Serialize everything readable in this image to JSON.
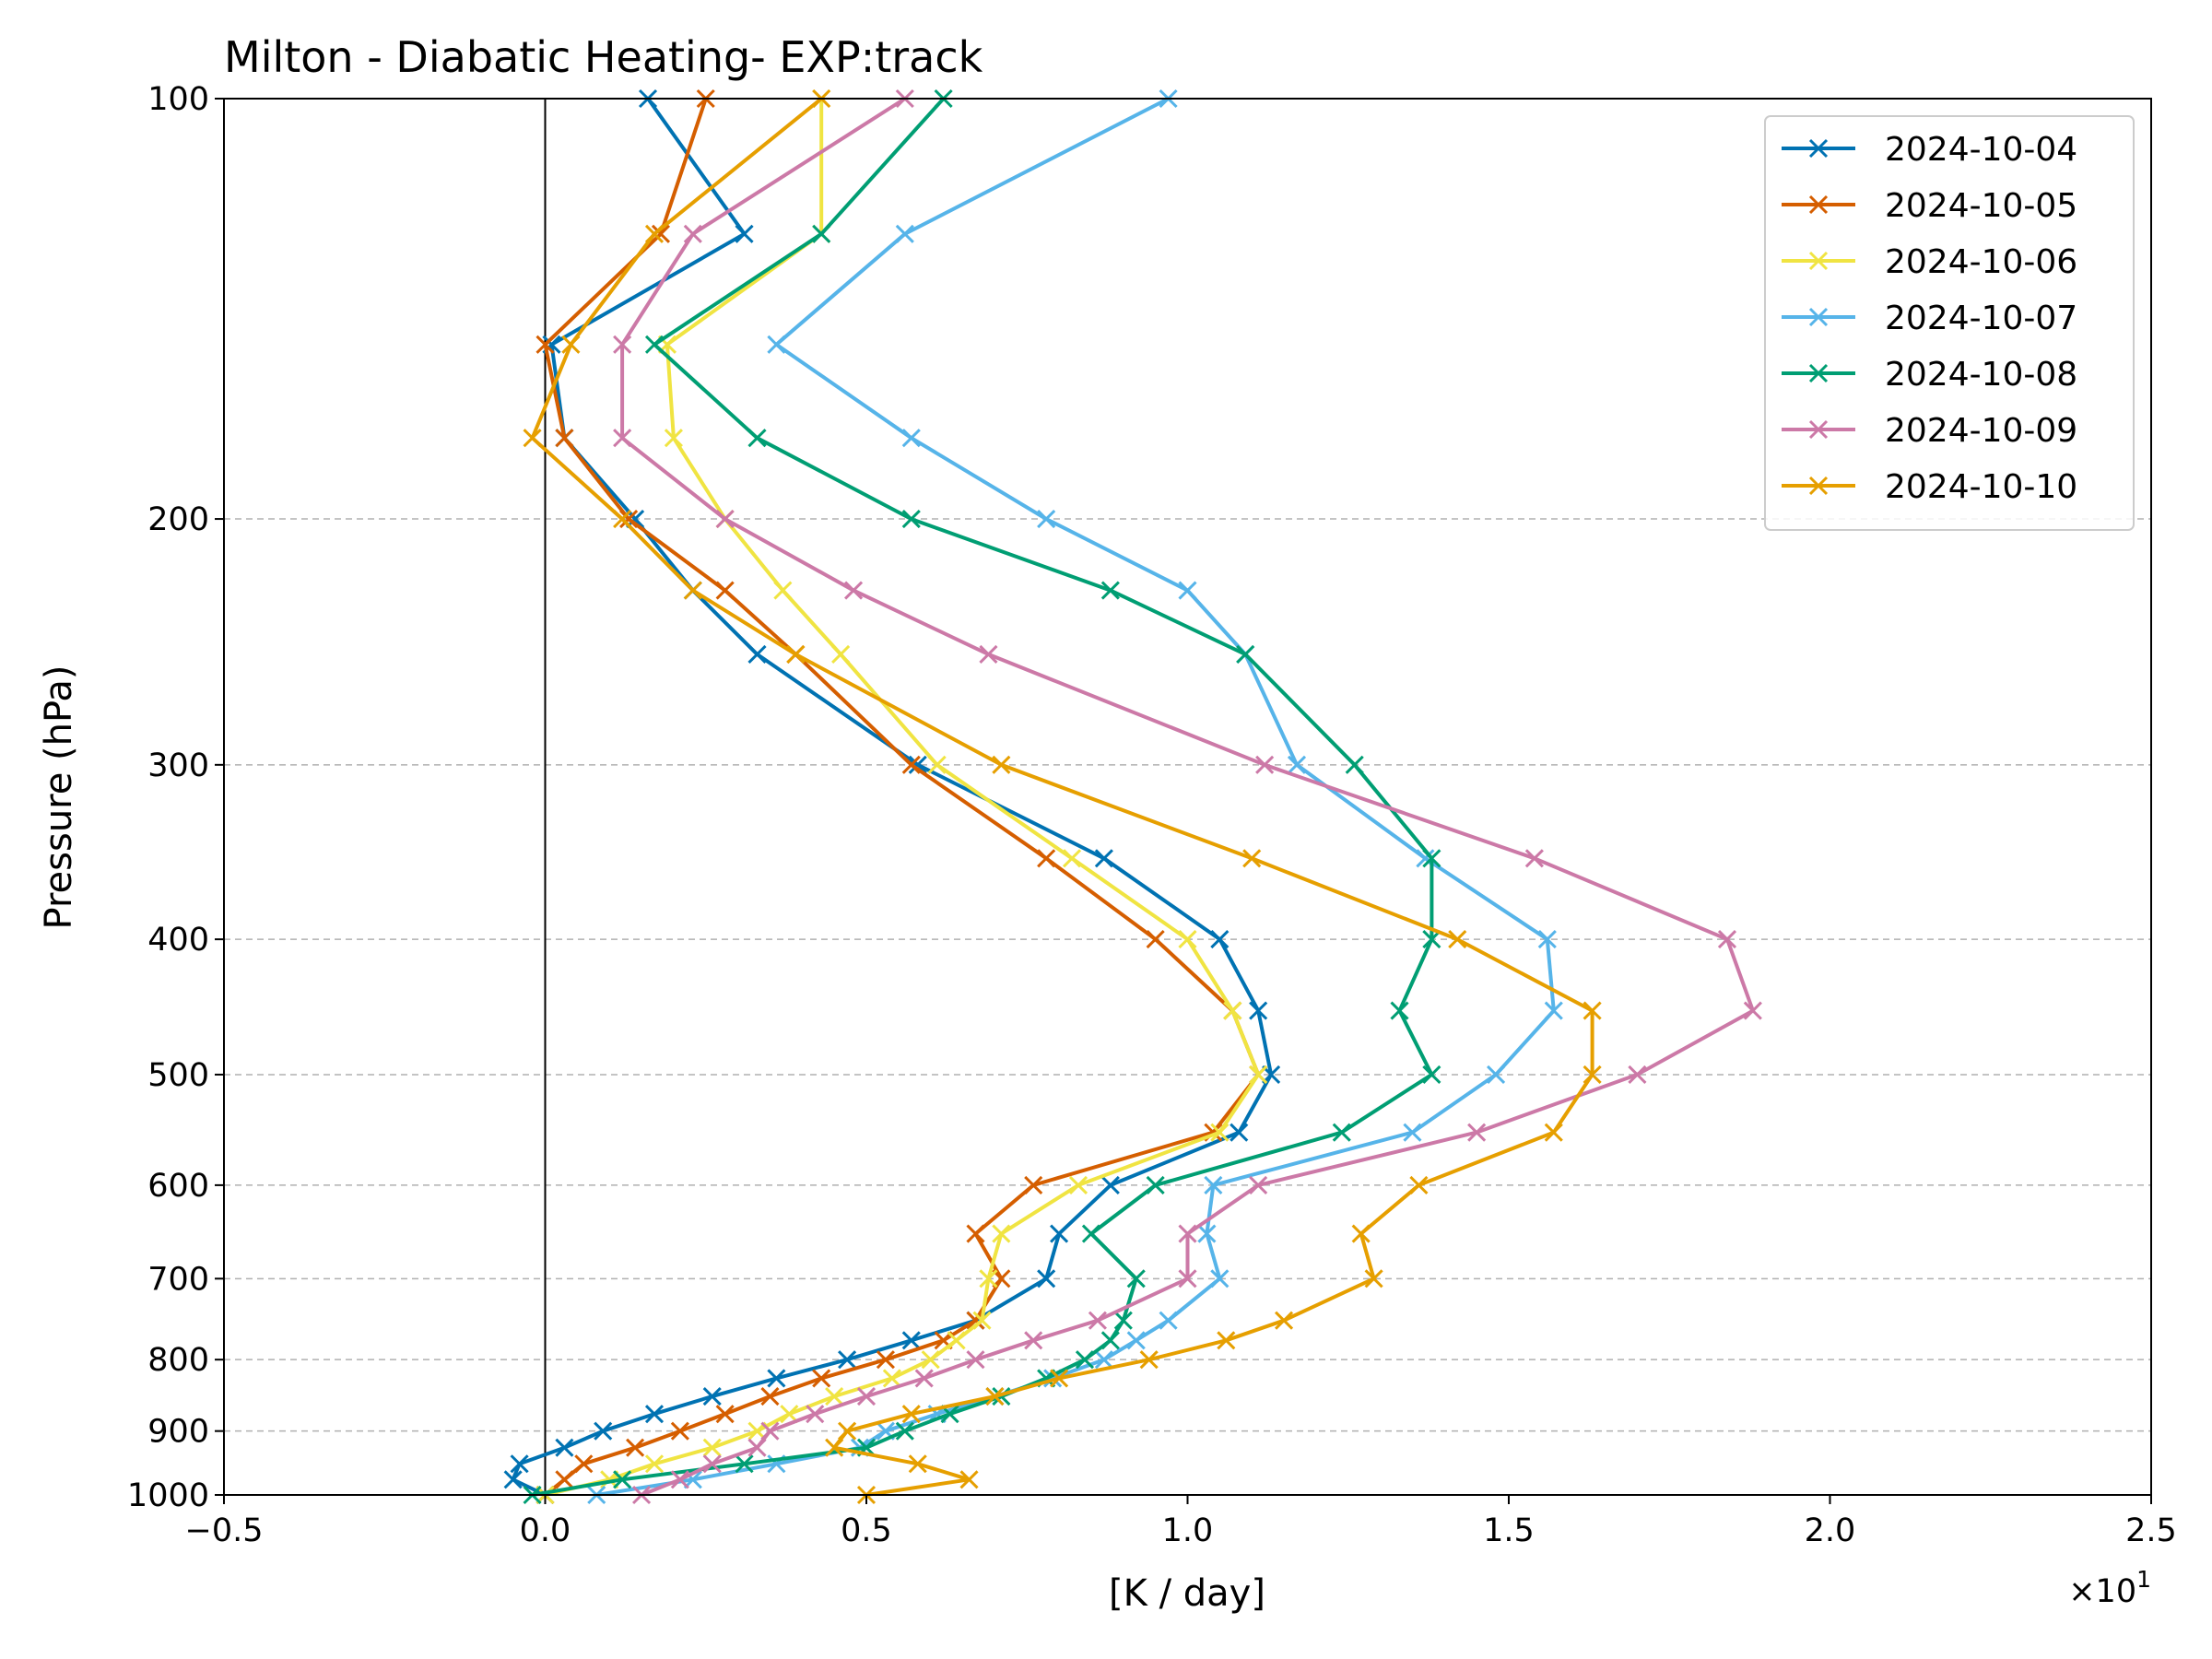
{
  "chart_data": {
    "type": "line",
    "title": "Milton - Diabatic Heating- EXP:track",
    "xlabel": "[K / day]",
    "ylabel": "Pressure (hPa)",
    "x_offset_label": "×10",
    "x_offset_exponent": "1",
    "xlim": [
      -0.5,
      2.5
    ],
    "ylim": [
      1000,
      100
    ],
    "yscale": "log",
    "xticks": [
      "−0.5",
      "0.0",
      "0.5",
      "1.0",
      "1.5",
      "2.0",
      "2.5"
    ],
    "xtick_values": [
      -0.5,
      0.0,
      0.5,
      1.0,
      1.5,
      2.0,
      2.5
    ],
    "yticks": [
      100,
      200,
      300,
      400,
      500,
      600,
      700,
      800,
      900,
      1000
    ],
    "ytick_labels": [
      "100",
      "200",
      "300",
      "400",
      "500",
      "600",
      "700",
      "800",
      "900",
      "1000"
    ],
    "grid": "horizontal dashed",
    "vertical_line_at": 0,
    "legend_position": "top-right",
    "levels": [
      100,
      125,
      150,
      175,
      200,
      225,
      250,
      300,
      350,
      400,
      450,
      500,
      550,
      600,
      650,
      700,
      750,
      775,
      800,
      825,
      850,
      875,
      900,
      925,
      950,
      975,
      1000
    ],
    "series": [
      {
        "name": "2024-10-04",
        "color": "#0072b2",
        "values": [
          0.16,
          0.31,
          0.01,
          0.03,
          0.14,
          0.23,
          0.33,
          0.58,
          0.87,
          1.05,
          1.11,
          1.13,
          1.08,
          0.88,
          0.8,
          0.78,
          0.67,
          0.57,
          0.47,
          0.36,
          0.26,
          0.17,
          0.09,
          0.03,
          -0.04,
          -0.05,
          0.0
        ]
      },
      {
        "name": "2024-10-05",
        "color": "#d55e00",
        "values": [
          0.25,
          0.18,
          0.0,
          0.03,
          0.13,
          0.28,
          0.39,
          0.57,
          0.78,
          0.95,
          1.07,
          1.11,
          1.04,
          0.76,
          0.67,
          0.71,
          0.67,
          0.62,
          0.53,
          0.43,
          0.35,
          0.28,
          0.21,
          0.14,
          0.06,
          0.03,
          0.0
        ]
      },
      {
        "name": "2024-10-06",
        "color": "#f0e442",
        "values": [
          0.43,
          0.43,
          0.19,
          0.2,
          0.28,
          0.37,
          0.46,
          0.61,
          0.82,
          1.0,
          1.07,
          1.11,
          1.05,
          0.83,
          0.71,
          0.69,
          0.68,
          0.64,
          0.6,
          0.54,
          0.45,
          0.38,
          0.33,
          0.26,
          0.17,
          0.1,
          0.0
        ]
      },
      {
        "name": "2024-10-07",
        "color": "#56b4e9",
        "values": [
          0.97,
          0.56,
          0.36,
          0.57,
          0.78,
          1.0,
          1.09,
          1.17,
          1.37,
          1.56,
          1.57,
          1.48,
          1.35,
          1.04,
          1.03,
          1.05,
          0.97,
          0.92,
          0.87,
          0.79,
          0.7,
          0.61,
          0.53,
          0.49,
          0.36,
          0.23,
          0.08
        ]
      },
      {
        "name": "2024-10-08",
        "color": "#009e73",
        "values": [
          0.62,
          0.43,
          0.17,
          0.33,
          0.57,
          0.88,
          1.09,
          1.26,
          1.38,
          1.38,
          1.33,
          1.38,
          1.24,
          0.95,
          0.85,
          0.92,
          0.9,
          0.88,
          0.84,
          0.78,
          0.71,
          0.63,
          0.56,
          0.5,
          0.31,
          0.12,
          -0.02
        ]
      },
      {
        "name": "2024-10-09",
        "color": "#cc79a7",
        "values": [
          0.56,
          0.23,
          0.12,
          0.12,
          0.28,
          0.48,
          0.69,
          1.12,
          1.54,
          1.84,
          1.88,
          1.7,
          1.45,
          1.11,
          1.0,
          1.0,
          0.86,
          0.76,
          0.67,
          0.59,
          0.5,
          0.42,
          0.35,
          0.33,
          0.26,
          0.21,
          0.15
        ]
      },
      {
        "name": "2024-10-10",
        "color": "#e69f00",
        "values": [
          0.43,
          0.17,
          0.04,
          -0.02,
          0.12,
          0.23,
          0.39,
          0.71,
          1.1,
          1.42,
          1.63,
          1.63,
          1.57,
          1.36,
          1.27,
          1.29,
          1.15,
          1.06,
          0.94,
          0.8,
          0.7,
          0.57,
          0.47,
          0.45,
          0.58,
          0.66,
          0.5
        ]
      }
    ]
  }
}
